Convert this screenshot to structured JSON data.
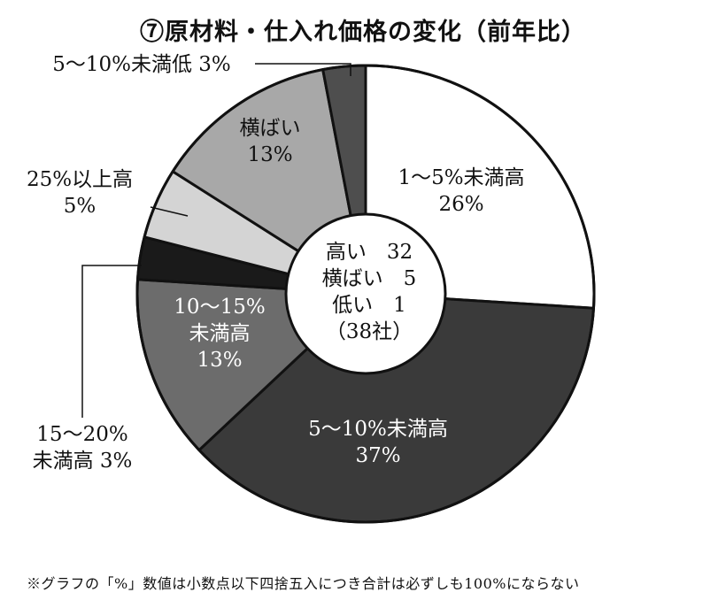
{
  "chart_data": {
    "type": "pie",
    "title": "⑦原材料・仕入れ価格の変化（前年比）",
    "slices": [
      {
        "label": "1〜5%未満高",
        "value": 26,
        "value_label": "26%",
        "color": "#ffffff",
        "text_color": "#111111"
      },
      {
        "label": "5〜10%未満高",
        "value": 37,
        "value_label": "37%",
        "color": "#3a3a3a",
        "text_color": "#ffffff"
      },
      {
        "label": "10〜15%未満高",
        "value": 13,
        "value_label": "13%",
        "color": "#6c6c6c",
        "text_color": "#ffffff"
      },
      {
        "label": "15〜20%未満高",
        "value": 3,
        "value_label": "3%",
        "color": "#1a1a1a",
        "text_color": "#111111"
      },
      {
        "label": "25%以上高",
        "value": 5,
        "value_label": "5%",
        "color": "#d4d4d4",
        "text_color": "#111111"
      },
      {
        "label": "横ばい",
        "value": 13,
        "value_label": "13%",
        "color": "#a8a8a8",
        "text_color": "#111111"
      },
      {
        "label": "5〜10%未満低",
        "value": 3,
        "value_label": "3%",
        "color": "#4e4e4e",
        "text_color": "#111111"
      }
    ],
    "center_summary": [
      {
        "label": "高い",
        "count": "32"
      },
      {
        "label": "横ばい",
        "count": "5"
      },
      {
        "label": "低い",
        "count": "1"
      }
    ],
    "center_total": "（38社）",
    "footnote": "※グラフの「%」数値は小数点以下四捨五入につき合計は必ずしも100%にならない"
  }
}
